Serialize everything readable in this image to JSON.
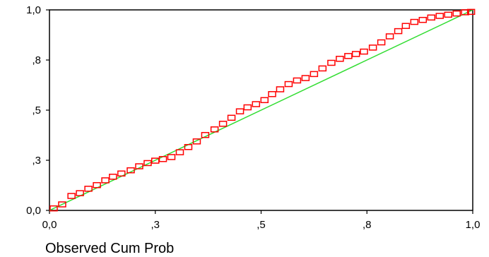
{
  "chart_data": {
    "type": "scatter",
    "title": "",
    "xlabel": "Observed Cum Prob",
    "ylabel": "",
    "xlim": [
      0,
      1
    ],
    "ylim": [
      0,
      1
    ],
    "x_ticks": [
      {
        "value": 0.0,
        "label": "0,0"
      },
      {
        "value": 0.25,
        "label": ",3"
      },
      {
        "value": 0.5,
        "label": ",5"
      },
      {
        "value": 0.75,
        "label": ",8"
      },
      {
        "value": 1.0,
        "label": "1,0"
      }
    ],
    "y_ticks": [
      {
        "value": 0.0,
        "label": "0,0"
      },
      {
        "value": 0.25,
        "label": ",3"
      },
      {
        "value": 0.5,
        "label": ",5"
      },
      {
        "value": 0.75,
        "label": ",8"
      },
      {
        "value": 1.0,
        "label": "1,0"
      }
    ],
    "grid": false,
    "legend": "none",
    "reference_line": {
      "from": [
        0,
        0
      ],
      "to": [
        1,
        1
      ],
      "color": "#33dd33"
    },
    "marker": {
      "shape": "square",
      "color": "#ff0000"
    },
    "series": [
      {
        "x": [
          0.01,
          0.03,
          0.052,
          0.072,
          0.092,
          0.112,
          0.132,
          0.15,
          0.17,
          0.192,
          0.212,
          0.232,
          0.25,
          0.268,
          0.288,
          0.308,
          0.328,
          0.348,
          0.368,
          0.39,
          0.41,
          0.43,
          0.45,
          0.468,
          0.488,
          0.508,
          0.526,
          0.545,
          0.565,
          0.585,
          0.605,
          0.625,
          0.645,
          0.666,
          0.686,
          0.706,
          0.724,
          0.743,
          0.764,
          0.784,
          0.804,
          0.824,
          0.842,
          0.862,
          0.882,
          0.902,
          0.922,
          0.942,
          0.962,
          0.982,
          0.996
        ],
        "y": [
          0.01,
          0.03,
          0.072,
          0.086,
          0.108,
          0.126,
          0.15,
          0.168,
          0.184,
          0.2,
          0.22,
          0.236,
          0.248,
          0.256,
          0.266,
          0.29,
          0.316,
          0.344,
          0.376,
          0.404,
          0.432,
          0.462,
          0.494,
          0.514,
          0.53,
          0.55,
          0.58,
          0.604,
          0.63,
          0.648,
          0.66,
          0.68,
          0.708,
          0.736,
          0.756,
          0.77,
          0.78,
          0.792,
          0.812,
          0.838,
          0.868,
          0.894,
          0.92,
          0.94,
          0.95,
          0.962,
          0.97,
          0.976,
          0.982,
          0.988,
          0.99
        ]
      }
    ]
  }
}
